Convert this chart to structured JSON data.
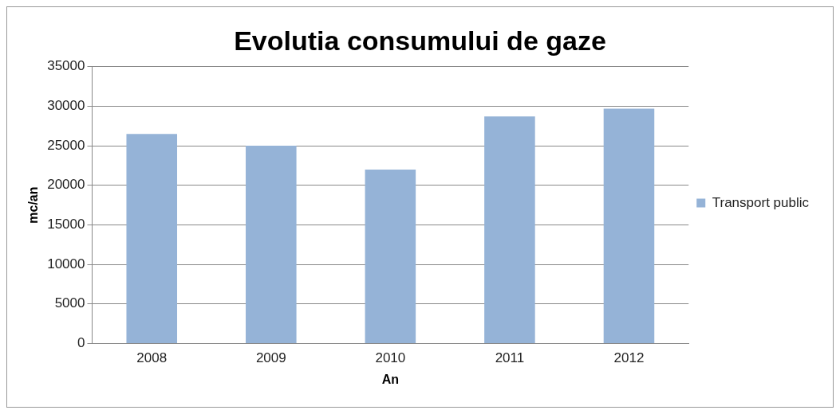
{
  "chart_data": {
    "type": "bar",
    "title": "Evolutia consumului de gaze",
    "xlabel": "An",
    "ylabel": "mc/an",
    "categories": [
      "2008",
      "2009",
      "2010",
      "2011",
      "2012"
    ],
    "series": [
      {
        "name": "Transport public",
        "color": "#95b3d7",
        "values": [
          26500,
          25000,
          22000,
          28700,
          29700
        ]
      }
    ],
    "ylim": [
      0,
      35000
    ],
    "yticks": [
      0,
      5000,
      10000,
      15000,
      20000,
      25000,
      30000,
      35000
    ],
    "grid": "y",
    "legend": "right"
  }
}
